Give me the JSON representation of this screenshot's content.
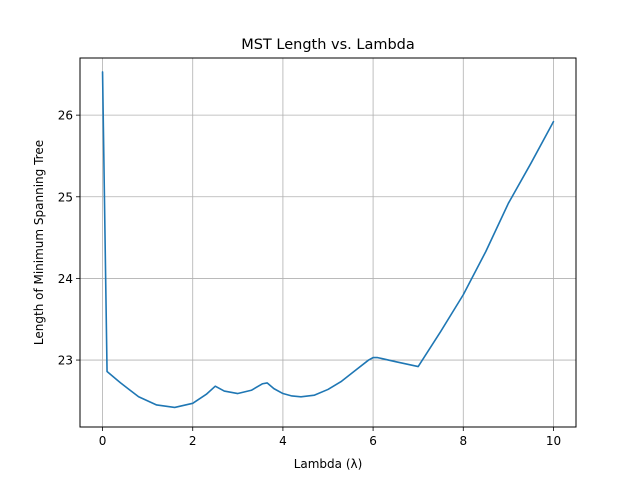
{
  "chart_data": {
    "type": "line",
    "title": "MST Length vs. Lambda",
    "xlabel": "Lambda (λ)",
    "ylabel": "Length of Minimum Spanning Tree",
    "xlim": [
      -0.5,
      10.5
    ],
    "ylim": [
      22.18,
      26.7
    ],
    "xticks": [
      0,
      2,
      4,
      6,
      8,
      10
    ],
    "yticks": [
      23,
      24,
      25,
      26
    ],
    "grid": true,
    "legend": "none",
    "line_color": "#1f77b4",
    "series": [
      {
        "x": [
          0.0,
          0.1,
          0.4,
          0.8,
          1.2,
          1.6,
          2.0,
          2.3,
          2.5,
          2.7,
          3.0,
          3.3,
          3.55,
          3.65,
          3.8,
          4.0,
          4.2,
          4.4,
          4.7,
          5.0,
          5.3,
          5.6,
          5.9,
          6.0,
          6.1,
          6.5,
          7.0,
          7.5,
          8.0,
          8.5,
          9.0,
          9.5,
          10.0
        ],
        "values": [
          26.53,
          22.86,
          22.72,
          22.55,
          22.45,
          22.42,
          22.47,
          22.58,
          22.68,
          22.62,
          22.59,
          22.63,
          22.71,
          22.72,
          22.65,
          22.59,
          22.56,
          22.55,
          22.57,
          22.64,
          22.74,
          22.87,
          23.0,
          23.03,
          23.03,
          22.98,
          22.92,
          23.35,
          23.8,
          24.33,
          24.92,
          25.41,
          25.92
        ]
      }
    ]
  }
}
